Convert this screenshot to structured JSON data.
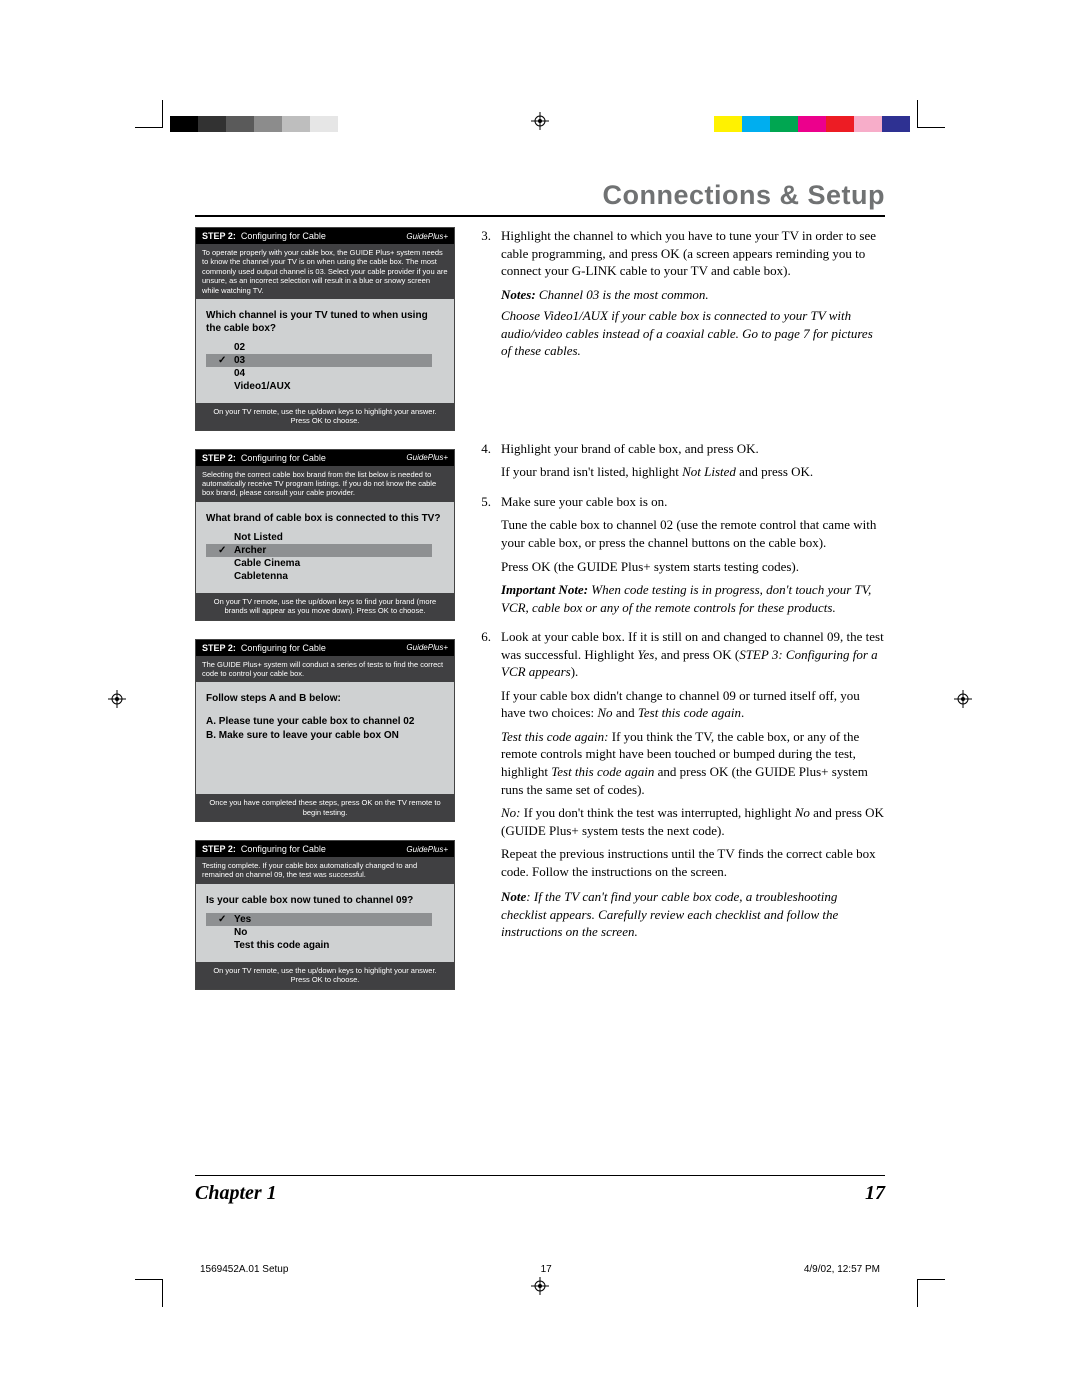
{
  "section_title": "Connections & Setup",
  "colorbar": {
    "left": [
      "#000000",
      "#323232",
      "#5a5a5a",
      "#8c8c8c",
      "#bebebe",
      "#e6e6e6"
    ],
    "right": [
      "#fff200",
      "#00aeef",
      "#00a651",
      "#ec008c",
      "#ed1c24",
      "#f7adc9",
      "#2e3192"
    ]
  },
  "screens": [
    {
      "step": "STEP 2:",
      "subtitle": "Configuring for Cable",
      "logo": "GuidePlus+",
      "banner": "To operate properly with your cable box, the GUIDE Plus+ system needs to know the channel your TV is on when using the cable box. The most commonly used output channel is 03. Select your cable provider if you are unsure, as an incorrect selection will result in a blue or snowy screen while watching TV.",
      "question": "Which channel is your TV tuned to when using the cable box?",
      "list": [
        {
          "label": "02",
          "checked": false,
          "highlight": false
        },
        {
          "label": "03",
          "checked": true,
          "highlight": true
        },
        {
          "label": "04",
          "checked": false,
          "highlight": false
        },
        {
          "label": "Video1/AUX",
          "checked": false,
          "highlight": false
        }
      ],
      "footer": "On your TV remote, use the up/down keys to highlight your answer.\nPress OK to choose."
    },
    {
      "step": "STEP 2:",
      "subtitle": "Configuring for Cable",
      "logo": "GuidePlus+",
      "banner": "Selecting the correct cable box brand from the list below is needed to automatically receive TV program listings. If you do not know the cable box brand, please consult your cable provider.",
      "question": "What brand of cable box is connected to this TV?",
      "list": [
        {
          "label": "Not Listed",
          "checked": false,
          "highlight": false
        },
        {
          "label": "Archer",
          "checked": true,
          "highlight": true
        },
        {
          "label": "Cable Cinema",
          "checked": false,
          "highlight": false
        },
        {
          "label": "Cabletenna",
          "checked": false,
          "highlight": false
        }
      ],
      "footer": "On your TV remote, use the up/down keys to find your brand (more brands will appear as you move down). Press OK to choose."
    },
    {
      "step": "STEP 2:",
      "subtitle": "Configuring for Cable",
      "logo": "GuidePlus+",
      "banner": "The GUIDE Plus+ system will conduct a series of tests to find the correct code to control your cable box.",
      "question": "Follow steps A and B below:",
      "body_lines": [
        "A. Please tune your cable box to channel 02",
        "B. Make sure to leave your cable box ON"
      ],
      "footer": "Once you have completed these steps, press OK on the TV remote to begin testing."
    },
    {
      "step": "STEP 2:",
      "subtitle": "Configuring for Cable",
      "logo": "GuidePlus+",
      "banner": "Testing complete.\nIf your cable box automatically changed to and remained on channel 09, the test was successful.",
      "question": "Is your cable box now tuned to channel 09?",
      "list": [
        {
          "label": "Yes",
          "checked": true,
          "highlight": true
        },
        {
          "label": "No",
          "checked": false,
          "highlight": false
        },
        {
          "label": "Test this code again",
          "checked": false,
          "highlight": false
        }
      ],
      "footer": "On your TV remote, use the up/down keys to highlight your answer.\nPress OK to choose."
    }
  ],
  "right": {
    "item3": "Highlight the channel to which you have to tune your TV in order to see cable programming, and press OK (a screen appears reminding you to connect your G-LINK cable to your TV and cable box).",
    "notes_label": "Notes:",
    "notes1": " Channel 03 is the most common.",
    "notes2": "Choose Video1/AUX if your cable box is connected to your TV with audio/video cables instead of a coaxial cable. Go to page 7 for pictures of these cables.",
    "item4a": "Highlight your brand of cable box, and press OK.",
    "item4b_pre": "If your brand isn't listed, highlight ",
    "item4b_ital": "Not Listed",
    "item4b_post": " and press OK.",
    "item5a": "Make sure your cable box is on.",
    "item5b": "Tune the cable box to channel 02 (use the remote control that came with your cable box, or press the channel buttons on the cable box).",
    "item5c": "Press OK (the GUIDE Plus+ system starts testing codes).",
    "imp_label": "Important Note:",
    "imp_text": "  When code testing is in progress, don't touch your TV, VCR, cable box or any of the remote controls for these products.",
    "item6a_pre": "Look at your cable box. If it is still on and changed to channel 09, the test was successful. Highlight ",
    "item6a_yes": "Yes",
    "item6a_mid": ", and press OK (",
    "item6a_step": "STEP 3: Configuring for a VCR appears",
    "item6a_post": ").",
    "item6b_pre": "If your cable box didn't change to channel 09 or turned itself off, you have two choices: ",
    "item6b_no": "No",
    "item6b_and": " and ",
    "item6b_test": "Test this code again",
    "item6b_post": ".",
    "p_test_label": "Test this code again:",
    "p_test_body_pre": " If you think the TV, the cable box, or any of the remote controls might have been touched or bumped during the test, highlight ",
    "p_test_body_ital": "Test this code again",
    "p_test_body_post": " and press OK (the GUIDE Plus+ system runs the same set of codes).",
    "p_no_label": "No:",
    "p_no_body_pre": " If you don't think the test was interrupted, highlight ",
    "p_no_body_ital": "No",
    "p_no_body_post": " and press OK (GUIDE Plus+ system tests the next code).",
    "p_repeat": "Repeat the previous instructions until the TV finds the correct cable box code. Follow the instructions on the screen.",
    "final_note_label": "Note",
    "final_note_body": ": If the TV can't find your cable box code, a troubleshooting checklist appears. Carefully review each checklist and follow the instructions on the screen."
  },
  "footer": {
    "chapter": "Chapter 1",
    "page": "17"
  },
  "imprint": {
    "doc": "1569452A.01 Setup",
    "mid": "17",
    "date": "4/9/02, 12:57 PM"
  }
}
